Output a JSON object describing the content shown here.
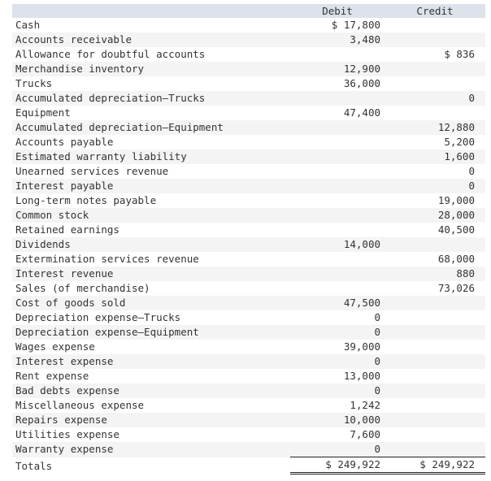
{
  "header": {
    "debit": "Debit",
    "credit": "Credit"
  },
  "rows": [
    {
      "account": "Cash",
      "debit": "$ 17,800",
      "credit": ""
    },
    {
      "account": "Accounts receivable",
      "debit": "3,480",
      "credit": ""
    },
    {
      "account": "Allowance for doubtful accounts",
      "debit": "",
      "credit": "$ 836"
    },
    {
      "account": "Merchandise inventory",
      "debit": "12,900",
      "credit": ""
    },
    {
      "account": "Trucks",
      "debit": "36,000",
      "credit": ""
    },
    {
      "account": "Accumulated depreciation—Trucks",
      "debit": "",
      "credit": "0"
    },
    {
      "account": "Equipment",
      "debit": "47,400",
      "credit": ""
    },
    {
      "account": "Accumulated depreciation—Equipment",
      "debit": "",
      "credit": "12,880"
    },
    {
      "account": "Accounts payable",
      "debit": "",
      "credit": "5,200"
    },
    {
      "account": "Estimated warranty liability",
      "debit": "",
      "credit": "1,600"
    },
    {
      "account": "Unearned services revenue",
      "debit": "",
      "credit": "0"
    },
    {
      "account": "Interest payable",
      "debit": "",
      "credit": "0"
    },
    {
      "account": "Long-term notes payable",
      "debit": "",
      "credit": "19,000"
    },
    {
      "account": "Common stock",
      "debit": "",
      "credit": "28,000"
    },
    {
      "account": "Retained earnings",
      "debit": "",
      "credit": "40,500"
    },
    {
      "account": "Dividends",
      "debit": "14,000",
      "credit": ""
    },
    {
      "account": "Extermination services revenue",
      "debit": "",
      "credit": "68,000"
    },
    {
      "account": "Interest revenue",
      "debit": "",
      "credit": "880"
    },
    {
      "account": "Sales (of merchandise)",
      "debit": "",
      "credit": "73,026"
    },
    {
      "account": "Cost of goods sold",
      "debit": "47,500",
      "credit": ""
    },
    {
      "account": "Depreciation expense—Trucks",
      "debit": "0",
      "credit": ""
    },
    {
      "account": "Depreciation expense—Equipment",
      "debit": "0",
      "credit": ""
    },
    {
      "account": "Wages expense",
      "debit": "39,000",
      "credit": ""
    },
    {
      "account": "Interest expense",
      "debit": "0",
      "credit": ""
    },
    {
      "account": "Rent expense",
      "debit": "13,000",
      "credit": ""
    },
    {
      "account": "Bad debts expense",
      "debit": "0",
      "credit": ""
    },
    {
      "account": "Miscellaneous expense",
      "debit": "1,242",
      "credit": ""
    },
    {
      "account": "Repairs expense",
      "debit": "10,000",
      "credit": ""
    },
    {
      "account": "Utilities expense",
      "debit": "7,600",
      "credit": ""
    },
    {
      "account": "Warranty expense",
      "debit": "0",
      "credit": ""
    }
  ],
  "totals": {
    "label": "Totals",
    "debit": "$ 249,922",
    "credit": "$ 249,922"
  }
}
